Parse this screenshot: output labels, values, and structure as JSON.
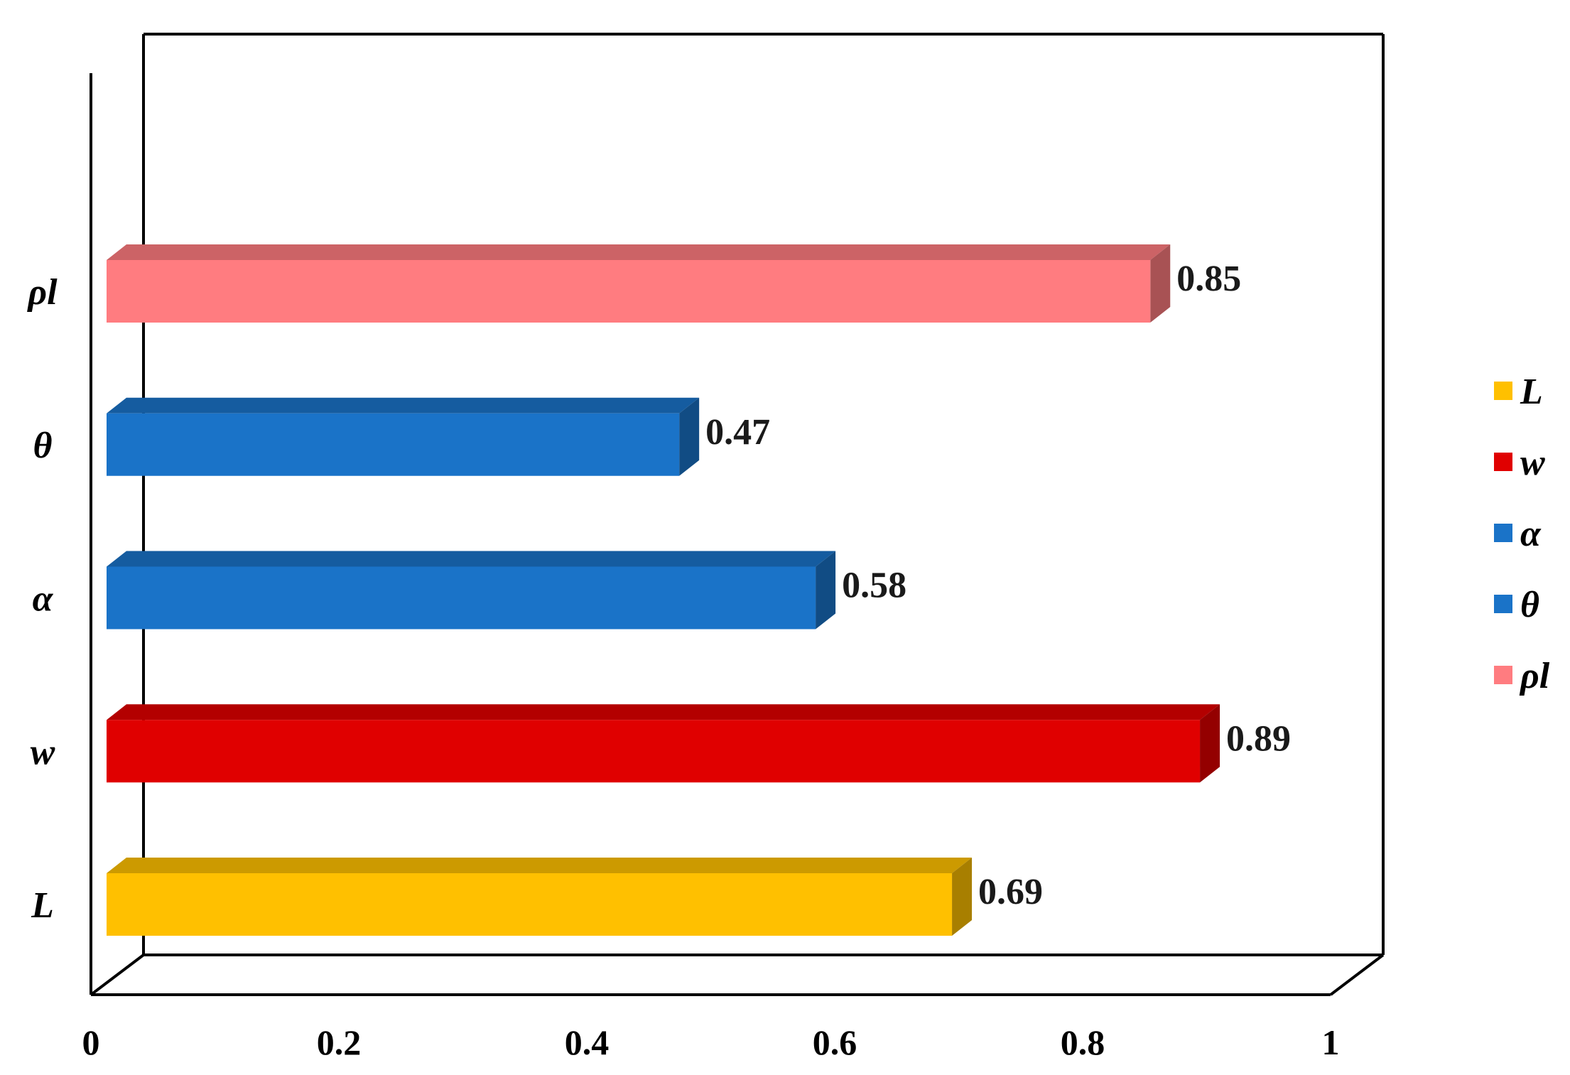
{
  "chart_data": {
    "type": "bar",
    "orientation": "horizontal",
    "style": "3d",
    "title": "",
    "xlabel": "",
    "ylabel": "",
    "categories": [
      "L",
      "w",
      "α",
      "θ",
      "ρl"
    ],
    "values": [
      0.69,
      0.89,
      0.58,
      0.47,
      0.85
    ],
    "data_labels": [
      "0.69",
      "0.89",
      "0.58",
      "0.47",
      "0.85"
    ],
    "colors": [
      "#FFC000",
      "#E00000",
      "#1A73C8",
      "#1A73C8",
      "#FF7C80"
    ],
    "xlim": [
      0,
      1
    ],
    "x_ticks": [
      0,
      0.2,
      0.4,
      0.6,
      0.8,
      1
    ],
    "x_tick_labels": [
      "0",
      "0.2",
      "0.4",
      "0.6",
      "0.8",
      "1"
    ],
    "grid": false,
    "legend": {
      "position": "right",
      "entries": [
        {
          "label": "L",
          "color": "#FFC000"
        },
        {
          "label": "w",
          "color": "#E00000"
        },
        {
          "label": "α",
          "color": "#1A73C8"
        },
        {
          "label": "θ",
          "color": "#1A73C8"
        },
        {
          "label": "ρl",
          "color": "#FF7C80"
        }
      ]
    }
  }
}
